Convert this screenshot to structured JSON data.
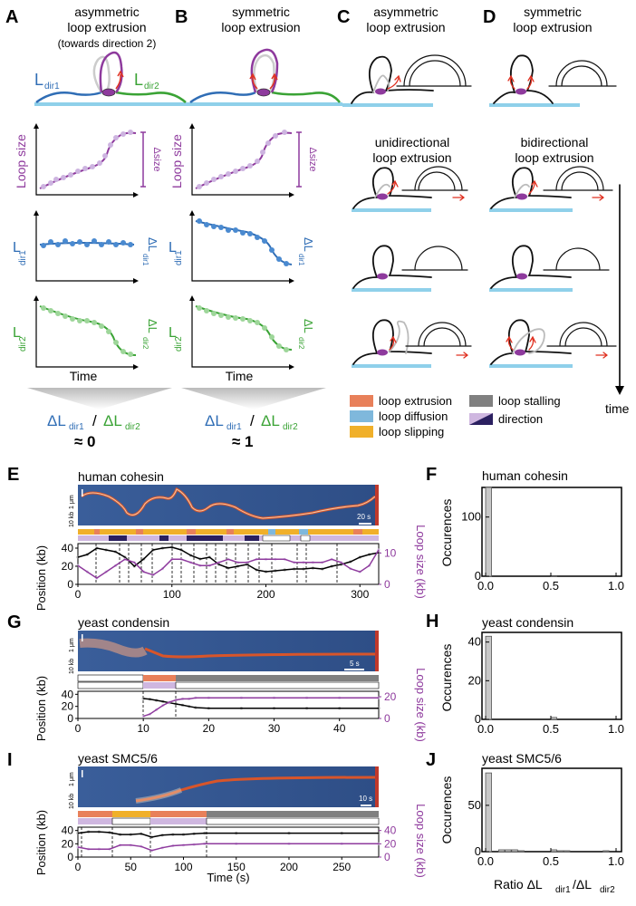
{
  "panels": {
    "A": {
      "letter": "A",
      "title1": "asymmetric",
      "title2": "loop extrusion",
      "title3": "(towards direction 2)",
      "ldir1": "L",
      "ldir1_sub": "dir1",
      "ldir2": "L",
      "ldir2_sub": "dir2",
      "y_loop": "Loop size",
      "delta_size": "Δsize",
      "y_ldir1": "L",
      "y_ldir1_sub": "dir1",
      "delta_ldir1": "ΔL",
      "delta_ldir1_sub": "dir1",
      "y_ldir2": "L",
      "y_ldir2_sub": "dir2",
      "delta_ldir2": "ΔL",
      "delta_ldir2_sub": "dir2",
      "xlabel": "Time",
      "ratio_num": "ΔL",
      "ratio_num_sub": "dir1",
      "ratio_slash": "/",
      "ratio_den": "ΔL",
      "ratio_den_sub": "dir2",
      "ratio_value": "≈ 0"
    },
    "B": {
      "letter": "B",
      "title1": "symmetric",
      "title2": "loop extrusion",
      "y_loop": "Loop size",
      "delta_size": "Δsize",
      "y_ldir1": "L",
      "y_ldir1_sub": "dir1",
      "delta_ldir1": "ΔL",
      "delta_ldir1_sub": "dir1",
      "y_ldir2": "L",
      "y_ldir2_sub": "dir2",
      "delta_ldir2": "ΔL",
      "delta_ldir2_sub": "dir2",
      "xlabel": "Time",
      "ratio_num": "ΔL",
      "ratio_num_sub": "dir1",
      "ratio_slash": "/",
      "ratio_den": "ΔL",
      "ratio_den_sub": "dir2",
      "ratio_value": "≈ 1"
    },
    "C": {
      "letter": "C",
      "title1": "asymmetric",
      "title2": "loop extrusion",
      "sub1": "unidirectional",
      "sub2": "loop extrusion"
    },
    "D": {
      "letter": "D",
      "title1": "symmetric",
      "title2": "loop extrusion",
      "sub1": "bidirectional",
      "sub2": "loop extrusion",
      "time_label": "time"
    },
    "legend": {
      "items": [
        {
          "label": "loop extrusion",
          "color": "#e8805a"
        },
        {
          "label": "loop diffusion",
          "color": "#7fb8dc"
        },
        {
          "label": "loop slipping",
          "color": "#f0b02a"
        },
        {
          "label": "loop stalling",
          "color": "#808080"
        },
        {
          "label": "direction",
          "color": "#2b2060"
        }
      ]
    },
    "E": {
      "letter": "E",
      "title": "human cohesin",
      "scale_um": "1 μm",
      "scale_kb": "10 kb",
      "scale_time": "20 s",
      "ylabel": "Position (kb)",
      "ylabel2": "Loop size (kb)"
    },
    "F": {
      "letter": "F",
      "title": "human cohesin",
      "ylabel": "Occurences"
    },
    "G": {
      "letter": "G",
      "title": "yeast condensin",
      "scale_um": "1 μm",
      "scale_kb": "10 kb",
      "scale_time": "5 s",
      "ylabel": "Position (kb)",
      "ylabel2": "Loop size (kb)"
    },
    "H": {
      "letter": "H",
      "title": "yeast condensin",
      "ylabel": "Occurences"
    },
    "I": {
      "letter": "I",
      "title": "yeast SMC5/6",
      "scale_um": "1 μm",
      "scale_kb": "10 kb",
      "scale_time": "10 s",
      "ylabel": "Position (kb)",
      "ylabel2": "Loop size (kb)",
      "xlabel": "Time (s)"
    },
    "J": {
      "letter": "J",
      "title": "yeast SMC5/6",
      "ylabel": "Occurences",
      "xlabel": "Ratio ΔL",
      "xlabel_sub1": "dir1",
      "xlabel_mid": "/ΔL",
      "xlabel_sub2": "dir2"
    }
  },
  "chart_data": [
    {
      "id": "E-trace",
      "type": "line",
      "xlim": [
        0,
        320
      ],
      "ylim": [
        0,
        45
      ],
      "y2lim": [
        0,
        13
      ],
      "x_ticks": [
        "0",
        "100",
        "200",
        "300"
      ],
      "y_ticks": [
        "0",
        "20",
        "40"
      ],
      "y2_ticks": [
        "0",
        "10"
      ],
      "series": [
        {
          "name": "position",
          "color": "#000000",
          "x": [
            0,
            10,
            20,
            30,
            40,
            50,
            60,
            70,
            80,
            90,
            100,
            110,
            120,
            130,
            140,
            150,
            160,
            170,
            180,
            190,
            200,
            210,
            220,
            230,
            240,
            250,
            260,
            270,
            280,
            290,
            300,
            310,
            320
          ],
          "values": [
            30,
            33,
            40,
            38,
            36,
            30,
            20,
            28,
            38,
            40,
            41,
            38,
            32,
            28,
            30,
            22,
            18,
            20,
            22,
            16,
            14,
            15,
            16,
            17,
            17,
            18,
            17,
            20,
            22,
            25,
            30,
            33,
            35
          ]
        },
        {
          "name": "loop size",
          "color": "#8e3a9d",
          "x": [
            0,
            10,
            20,
            30,
            40,
            50,
            60,
            70,
            80,
            90,
            100,
            110,
            120,
            130,
            140,
            150,
            160,
            170,
            180,
            190,
            200,
            210,
            220,
            230,
            240,
            250,
            260,
            270,
            280,
            290,
            300,
            310,
            320
          ],
          "values": [
            6,
            4,
            2,
            4,
            6,
            8,
            7,
            4,
            3,
            5,
            8,
            8,
            7,
            6,
            6,
            7,
            8,
            7,
            7,
            8,
            8,
            8,
            8,
            7,
            7,
            7,
            7,
            8,
            7,
            5,
            4,
            6,
            11
          ]
        }
      ]
    },
    {
      "id": "F-hist",
      "type": "bar",
      "xlim": [
        0,
        1
      ],
      "ylim": [
        0,
        150
      ],
      "x_ticks": [
        "0.0",
        "0.5",
        "1.0"
      ],
      "y_ticks": [
        "0",
        "100"
      ],
      "categories": [
        "0.0",
        "0.5"
      ],
      "values": [
        150,
        1
      ]
    },
    {
      "id": "G-trace",
      "type": "line",
      "xlim": [
        0,
        46
      ],
      "ylim": [
        0,
        45
      ],
      "y2lim": [
        0,
        25
      ],
      "x_ticks": [
        "0",
        "10",
        "20",
        "30",
        "40"
      ],
      "y_ticks": [
        "0",
        "20",
        "40"
      ],
      "y2_ticks": [
        "0",
        "20"
      ],
      "series": [
        {
          "name": "position",
          "color": "#000000",
          "x": [
            10,
            11,
            12,
            13,
            14,
            15,
            16,
            17,
            18,
            20,
            25,
            30,
            35,
            40,
            46
          ],
          "values": [
            33,
            32,
            30,
            28,
            26,
            24,
            22,
            20,
            18,
            17,
            17,
            17,
            17,
            17,
            17
          ]
        },
        {
          "name": "loop size",
          "color": "#8e3a9d",
          "x": [
            10,
            11,
            12,
            13,
            14,
            15,
            16,
            17,
            18,
            20,
            25,
            30,
            35,
            40,
            46
          ],
          "values": [
            2,
            4,
            8,
            12,
            15,
            17,
            18,
            18,
            19,
            19,
            19,
            19,
            19,
            19,
            19
          ]
        }
      ]
    },
    {
      "id": "H-hist",
      "type": "bar",
      "xlim": [
        0,
        1
      ],
      "ylim": [
        0,
        45
      ],
      "x_ticks": [
        "0.0",
        "0.5",
        "1.0"
      ],
      "y_ticks": [
        "0",
        "20",
        "40"
      ],
      "categories": [
        "0.0",
        "0.5"
      ],
      "values": [
        43,
        1
      ]
    },
    {
      "id": "I-trace",
      "type": "line",
      "xlim": [
        0,
        285
      ],
      "ylim": [
        0,
        45
      ],
      "y2lim": [
        0,
        45
      ],
      "x_ticks": [
        "0",
        "50",
        "100",
        "150",
        "200",
        "250"
      ],
      "y_ticks": [
        "0",
        "20",
        "40"
      ],
      "y2_ticks": [
        "0",
        "20",
        "40"
      ],
      "series": [
        {
          "name": "position",
          "color": "#000000",
          "x": [
            0,
            10,
            20,
            30,
            40,
            50,
            60,
            70,
            80,
            90,
            100,
            110,
            120,
            150,
            200,
            250,
            285
          ],
          "values": [
            36,
            38,
            38,
            37,
            34,
            34,
            35,
            30,
            33,
            34,
            34,
            35,
            36,
            36,
            36,
            36,
            36
          ]
        },
        {
          "name": "loop size",
          "color": "#8e3a9d",
          "x": [
            0,
            10,
            20,
            30,
            40,
            50,
            60,
            70,
            80,
            90,
            100,
            110,
            120,
            150,
            200,
            250,
            285
          ],
          "values": [
            15,
            12,
            12,
            12,
            18,
            18,
            16,
            10,
            14,
            17,
            18,
            19,
            20,
            20,
            20,
            20,
            20
          ]
        }
      ]
    },
    {
      "id": "J-hist",
      "type": "bar",
      "xlim": [
        0,
        1
      ],
      "ylim": [
        0,
        90
      ],
      "x_ticks": [
        "0.0",
        "0.5",
        "1.0"
      ],
      "y_ticks": [
        "0",
        "50"
      ],
      "categories": [
        "0.0",
        "0.1",
        "0.15",
        "0.2",
        "0.25",
        "0.5",
        "0.55",
        "0.6",
        "0.9"
      ],
      "values": [
        85,
        2,
        2,
        2,
        1,
        2,
        1,
        1,
        1
      ]
    }
  ]
}
